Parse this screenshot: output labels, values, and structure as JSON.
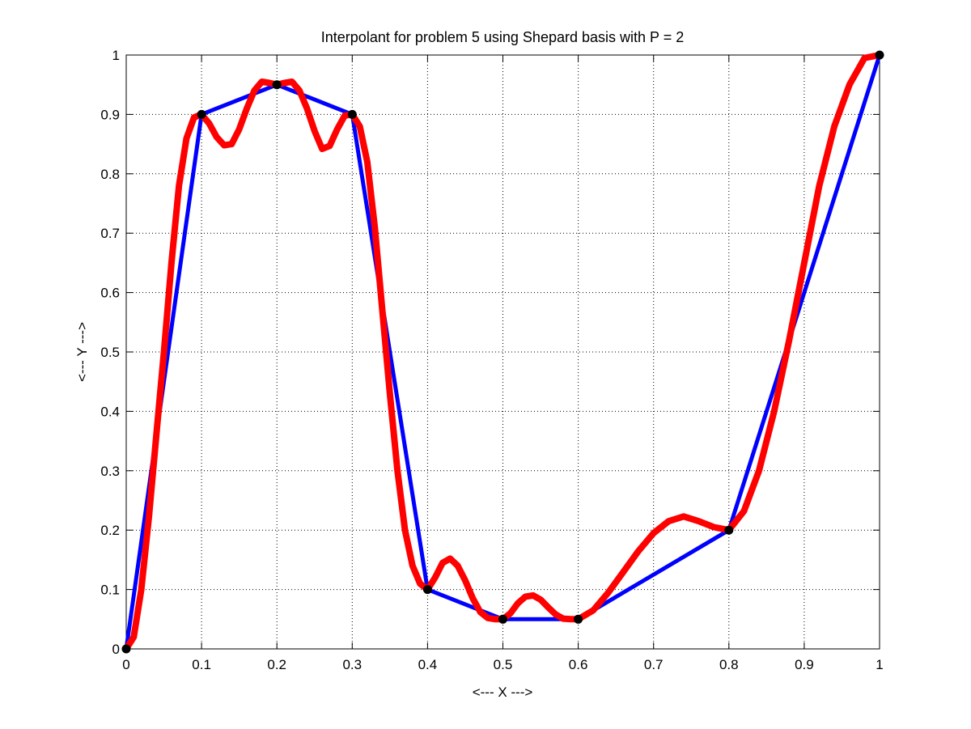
{
  "chart_data": {
    "type": "line",
    "title": "Interpolant for problem 5 using Shepard basis with P = 2",
    "xlabel": "<--- X --->",
    "ylabel": "<--- Y --->",
    "xlim": [
      0,
      1
    ],
    "ylim": [
      0,
      1
    ],
    "x_ticks": [
      "0",
      "0.1",
      "0.2",
      "0.3",
      "0.4",
      "0.5",
      "0.6",
      "0.7",
      "0.8",
      "0.9",
      "1"
    ],
    "y_ticks": [
      "0",
      "0.1",
      "0.2",
      "0.3",
      "0.4",
      "0.5",
      "0.6",
      "0.7",
      "0.8",
      "0.9",
      "1"
    ],
    "grid": true,
    "grid_style": "dotted",
    "series": [
      {
        "role": "data points",
        "style": "markers",
        "color": "#000000",
        "x": [
          0.0,
          0.1,
          0.2,
          0.3,
          0.4,
          0.5,
          0.6,
          0.8,
          1.0
        ],
        "y": [
          0.0,
          0.9,
          0.95,
          0.9,
          0.1,
          0.05,
          0.05,
          0.2,
          1.0
        ]
      },
      {
        "role": "piecewise linear",
        "style": "line",
        "color": "#0000ff",
        "x": [
          0.0,
          0.1,
          0.2,
          0.3,
          0.4,
          0.5,
          0.6,
          0.8,
          1.0
        ],
        "y": [
          0.0,
          0.9,
          0.95,
          0.9,
          0.1,
          0.05,
          0.05,
          0.2,
          1.0
        ]
      },
      {
        "role": "Shepard interpolant",
        "style": "line",
        "color": "#ff0000",
        "x": [
          0.0,
          0.01,
          0.02,
          0.03,
          0.04,
          0.05,
          0.06,
          0.07,
          0.08,
          0.09,
          0.1,
          0.11,
          0.12,
          0.13,
          0.14,
          0.15,
          0.16,
          0.17,
          0.18,
          0.19,
          0.2,
          0.21,
          0.22,
          0.23,
          0.24,
          0.25,
          0.26,
          0.27,
          0.28,
          0.29,
          0.3,
          0.31,
          0.32,
          0.33,
          0.34,
          0.35,
          0.36,
          0.37,
          0.38,
          0.39,
          0.4,
          0.41,
          0.42,
          0.43,
          0.44,
          0.45,
          0.46,
          0.47,
          0.48,
          0.49,
          0.5,
          0.51,
          0.52,
          0.53,
          0.54,
          0.55,
          0.56,
          0.57,
          0.58,
          0.59,
          0.6,
          0.62,
          0.64,
          0.66,
          0.68,
          0.7,
          0.72,
          0.74,
          0.76,
          0.78,
          0.8,
          0.82,
          0.84,
          0.86,
          0.88,
          0.9,
          0.92,
          0.94,
          0.96,
          0.98,
          1.0
        ],
        "y": [
          0.0,
          0.02,
          0.1,
          0.22,
          0.36,
          0.5,
          0.65,
          0.78,
          0.86,
          0.895,
          0.9,
          0.885,
          0.862,
          0.848,
          0.85,
          0.875,
          0.91,
          0.94,
          0.955,
          0.953,
          0.95,
          0.953,
          0.955,
          0.94,
          0.91,
          0.872,
          0.842,
          0.847,
          0.875,
          0.898,
          0.9,
          0.88,
          0.82,
          0.71,
          0.57,
          0.43,
          0.3,
          0.2,
          0.14,
          0.11,
          0.1,
          0.12,
          0.145,
          0.152,
          0.14,
          0.115,
          0.085,
          0.062,
          0.052,
          0.05,
          0.05,
          0.06,
          0.077,
          0.088,
          0.09,
          0.083,
          0.07,
          0.058,
          0.051,
          0.05,
          0.05,
          0.065,
          0.095,
          0.13,
          0.165,
          0.195,
          0.215,
          0.223,
          0.215,
          0.205,
          0.2,
          0.232,
          0.3,
          0.4,
          0.52,
          0.65,
          0.78,
          0.88,
          0.95,
          0.995,
          1.0
        ]
      }
    ]
  }
}
